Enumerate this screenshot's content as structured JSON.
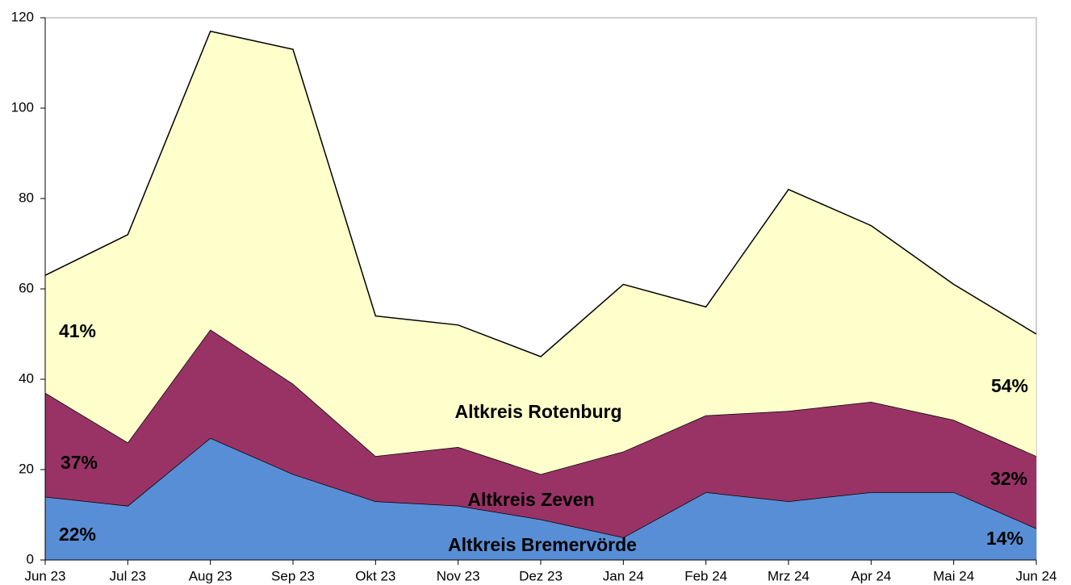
{
  "chart_data": {
    "type": "stacked_area",
    "categories": [
      "Jun 23",
      "Jul 23",
      "Aug 23",
      "Sep 23",
      "Okt 23",
      "Nov 23",
      "Dez 23",
      "Jan 24",
      "Feb 24",
      "Mrz 24",
      "Apr 24",
      "Mai 24",
      "Jun 24"
    ],
    "series": [
      {
        "name": "Altkreis Bremervörde",
        "color": "#588ed5",
        "values": [
          14,
          12,
          27,
          19,
          13,
          12,
          9,
          5,
          15,
          13,
          15,
          15,
          7
        ]
      },
      {
        "name": "Altkreis Zeven",
        "color": "#993366",
        "values": [
          23,
          14,
          24,
          20,
          10,
          13,
          10,
          19,
          17,
          20,
          20,
          16,
          16
        ]
      },
      {
        "name": "Altkreis Rotenburg",
        "color": "#ffffcc",
        "values": [
          26,
          46,
          66,
          74,
          31,
          27,
          26,
          37,
          24,
          49,
          39,
          30,
          27
        ]
      }
    ],
    "ylim": [
      0,
      120
    ],
    "yticks": [
      0,
      20,
      40,
      60,
      80,
      100,
      120
    ],
    "annotations": [
      {
        "text": "22%"
      },
      {
        "text": "37%"
      },
      {
        "text": "41%"
      },
      {
        "text": "14%"
      },
      {
        "text": "32%"
      },
      {
        "text": "54%"
      }
    ]
  }
}
